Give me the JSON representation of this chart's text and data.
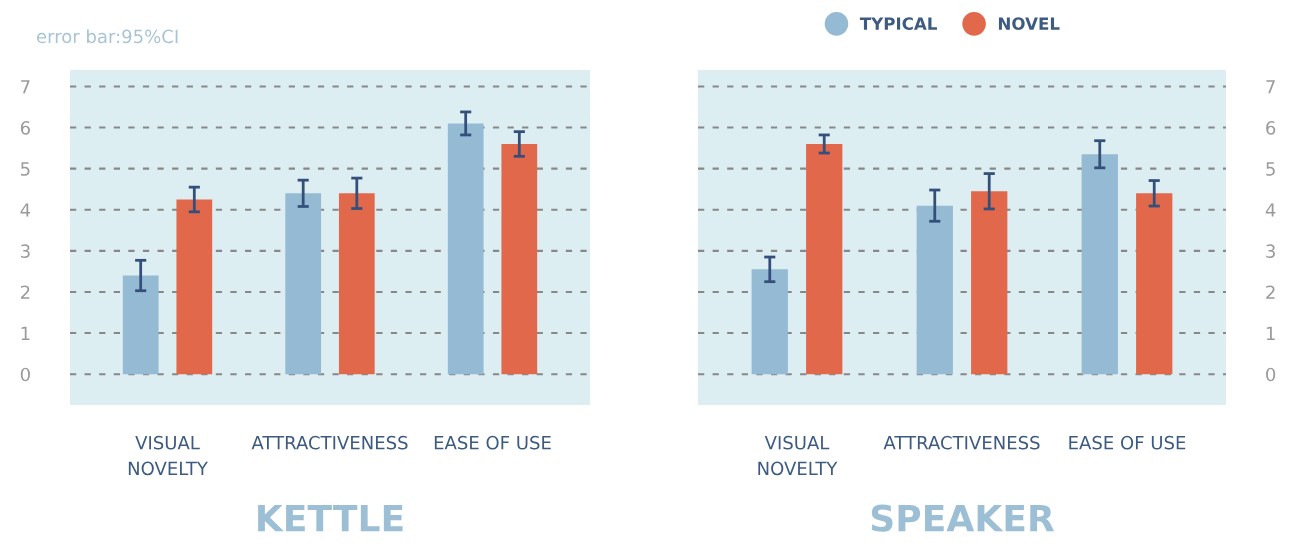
{
  "chart_data": [
    {
      "type": "bar",
      "title": "KETTLE",
      "annotations": [
        "error bar:95%CI"
      ],
      "categories": [
        "VISUAL\nNOVELTY",
        "ATTRACTIVENESS",
        "EASE OF USE"
      ],
      "series": [
        {
          "name": "TYPICAL",
          "color": "#95bad3",
          "values": [
            2.4,
            4.4,
            6.1
          ],
          "errors": [
            0.37,
            0.32,
            0.28
          ]
        },
        {
          "name": "NOVEL",
          "color": "#e2684b",
          "values": [
            4.25,
            4.4,
            5.6
          ],
          "errors": [
            0.3,
            0.37,
            0.3
          ]
        }
      ],
      "ylim": [
        -0.75,
        7.4
      ],
      "yticks": [
        0,
        1,
        2,
        3,
        4,
        5,
        6,
        7
      ],
      "grid": "y",
      "legend": "top right"
    },
    {
      "type": "bar",
      "title": "SPEAKER",
      "categories": [
        "VISUAL\nNOVELTY",
        "ATTRACTIVENESS",
        "EASE OF USE"
      ],
      "series": [
        {
          "color": "#95bad3",
          "values": [
            2.55,
            4.1,
            5.35
          ],
          "errors": [
            0.3,
            0.38,
            0.33
          ]
        },
        {
          "color": "#e2684b",
          "values": [
            5.6,
            4.45,
            4.4
          ],
          "errors": [
            0.22,
            0.43,
            0.31
          ]
        }
      ],
      "ylim": [
        -0.75,
        7.4
      ],
      "yticks": [
        0,
        1,
        2,
        3,
        4,
        5,
        6,
        7
      ],
      "grid": "y"
    }
  ]
}
